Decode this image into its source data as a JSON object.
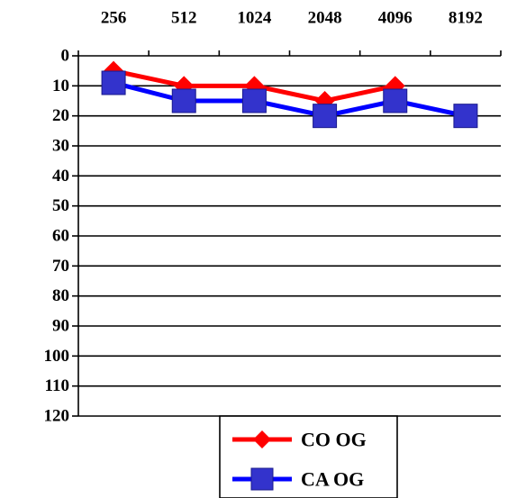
{
  "chart_data": {
    "type": "line",
    "title": "",
    "xlabel": "",
    "ylabel": "",
    "x_position": "top",
    "y_inverted": true,
    "categories": [
      "256",
      "512",
      "1024",
      "2048",
      "4096",
      "8192"
    ],
    "ylim": [
      0,
      120
    ],
    "yticks": [
      0,
      10,
      20,
      30,
      40,
      50,
      60,
      70,
      80,
      90,
      100,
      110,
      120
    ],
    "grid": "horizontal",
    "legend": "bottom-center",
    "series": [
      {
        "name": "CO OG",
        "color": "#ff0000",
        "marker": "diamond",
        "values": [
          5,
          10,
          10,
          15,
          10,
          null
        ]
      },
      {
        "name": "CA OG",
        "color": "#0000ff",
        "marker_color": "#3333cc",
        "marker": "square",
        "values": [
          9,
          15,
          15,
          20,
          15,
          20
        ]
      }
    ]
  }
}
